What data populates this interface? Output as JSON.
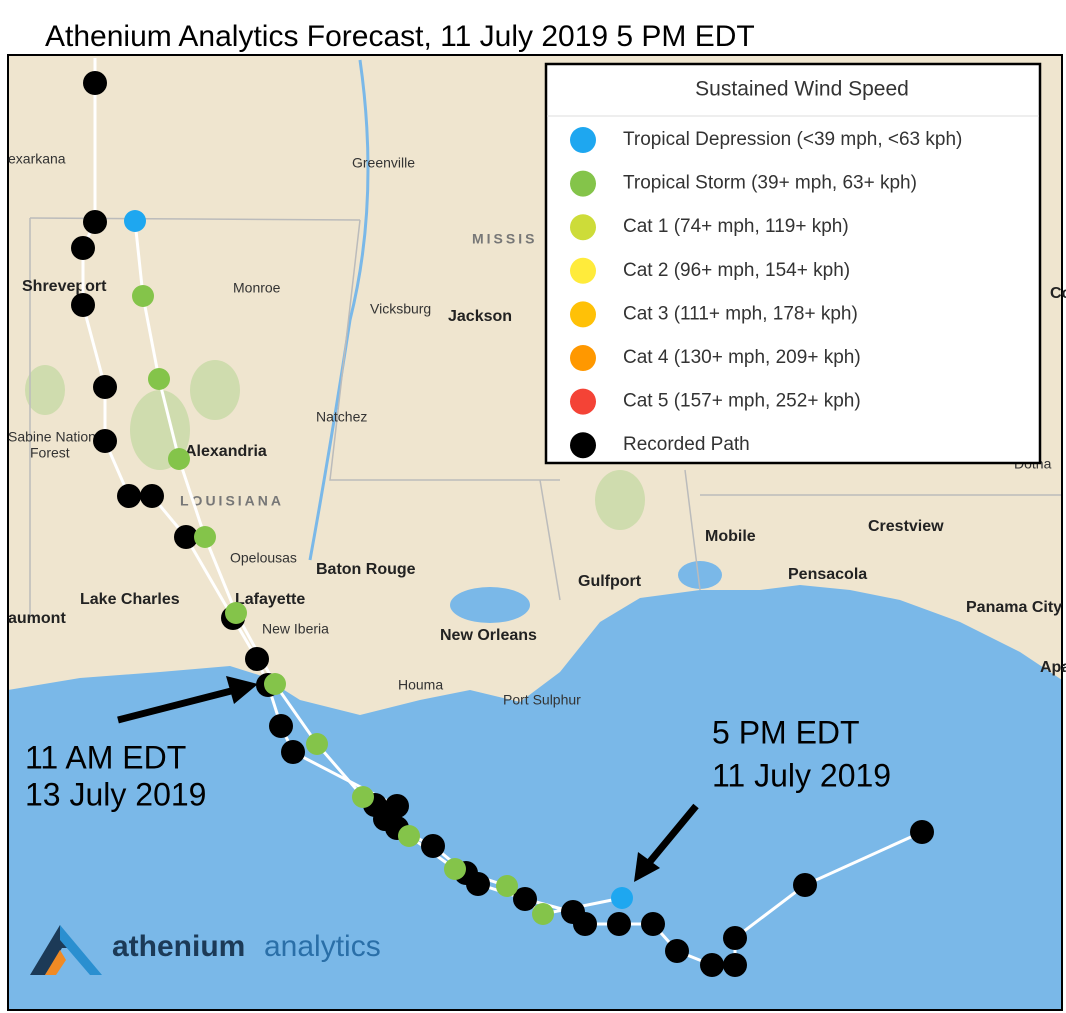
{
  "title": "Athenium Analytics Forecast, 11 July 2019 5 PM EDT",
  "legend": {
    "title": "Sustained Wind Speed",
    "items": [
      {
        "label": "Tropical Depression (<39 mph, <63 kph)",
        "color": "#1ea7f0"
      },
      {
        "label": "Tropical Storm (39+ mph, 63+ kph)",
        "color": "#84c44a"
      },
      {
        "label": "Cat 1 (74+ mph, 119+ kph)",
        "color": "#cddc39"
      },
      {
        "label": "Cat 2 (96+ mph, 154+ kph)",
        "color": "#ffeb3b"
      },
      {
        "label": "Cat 3 (111+ mph, 178+ kph)",
        "color": "#ffc107"
      },
      {
        "label": "Cat 4 (130+ mph, 209+ kph)",
        "color": "#ff9800"
      },
      {
        "label": "Cat 5 (157+ mph, 252+ kph)",
        "color": "#f44336"
      },
      {
        "label": "Recorded Path",
        "color": "#000000"
      }
    ]
  },
  "places": [
    "exarkana",
    "Greenville",
    "MISSIS",
    "Shreveport",
    "Monroe",
    "Vicksburg",
    "Jackson",
    "Natchez",
    "Sabine National",
    "Forest",
    "Alexandria",
    "LOUISIANA",
    "Opelousas",
    "Baton Rouge",
    "Mobile",
    "Crestview",
    "Pensacola",
    "Gulfport",
    "Lake Charles",
    "Lafayette",
    "aumont",
    "New Iberia",
    "New Orleans",
    "Panama City",
    "Houma",
    "Port Sulphur",
    "Apa",
    "Dotha",
    "Co"
  ],
  "annotations": [
    {
      "lines": [
        "11 AM EDT",
        "13 July 2019"
      ]
    },
    {
      "lines": [
        "5 PM EDT",
        "11 July 2019"
      ]
    }
  ],
  "logo": {
    "brand": "athenium",
    "product": "analytics"
  }
}
